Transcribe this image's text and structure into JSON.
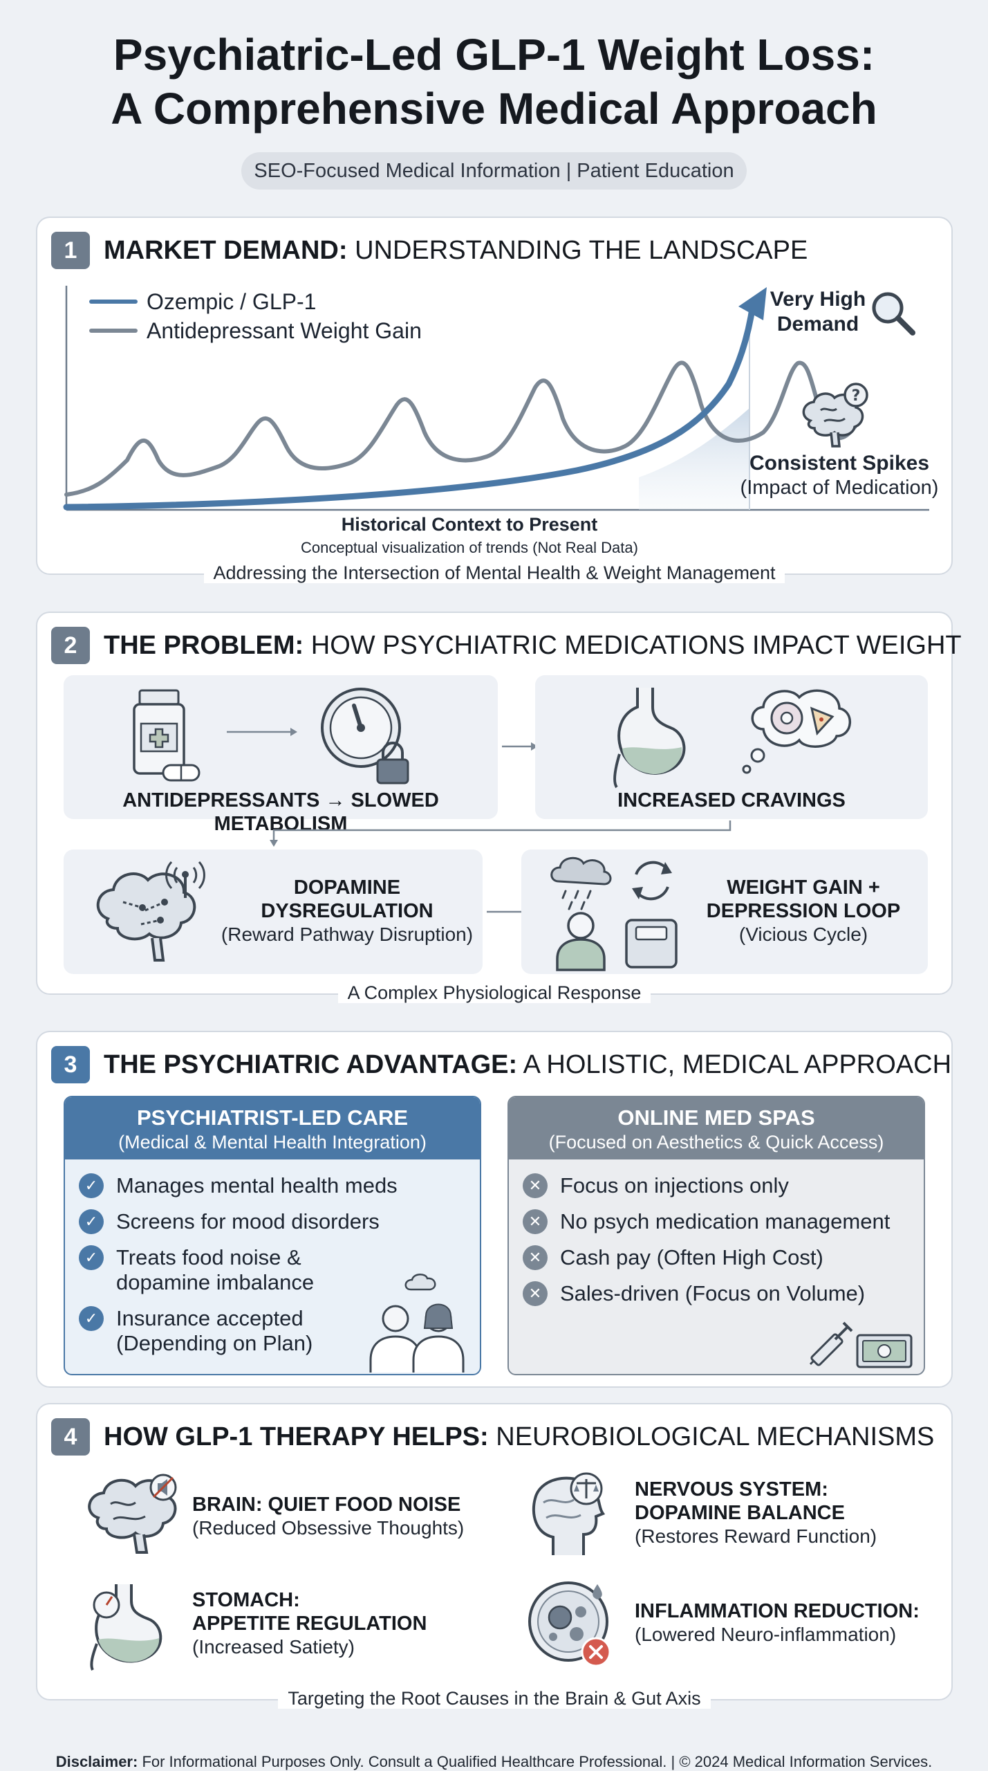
{
  "header": {
    "title_line1": "Psychiatric-Led GLP-1 Weight Loss:",
    "title_line2": "A Comprehensive Medical Approach",
    "subtitle": "SEO-Focused Medical Information | Patient Education"
  },
  "section1": {
    "number": "1",
    "title_bold": "MARKET DEMAND:",
    "title_rest": " UNDERSTANDING THE LANDSCAPE",
    "legend": [
      "Ozempic / GLP-1",
      "Antidepressant Weight Gain"
    ],
    "annotation_high_line1": "Very High",
    "annotation_high_line2": "Demand",
    "annotation_spikes_bold": "Consistent Spikes",
    "annotation_spikes_note": "(Impact of Medication)",
    "xlabel": "Historical Context to Present",
    "xlabel_note": "Conceptual visualization of trends (Not Real Data)",
    "caption": "Addressing the Intersection of Mental Health & Weight Management",
    "colors": {
      "glp1": "#4a78a6",
      "antidep": "#7b8794"
    }
  },
  "section2": {
    "number": "2",
    "title_bold": "THE PROBLEM:",
    "title_rest": " HOW PSYCHIATRIC MEDICATIONS IMPACT WEIGHT",
    "box1_label": "ANTIDEPRESSANTS → SLOWED METABOLISM",
    "box2_label": "INCREASED CRAVINGS",
    "box3_label_line1": "DOPAMINE",
    "box3_label_line2": "DYSREGULATION",
    "box3_note": "(Reward Pathway Disruption)",
    "box4_label_line1": "WEIGHT GAIN +",
    "box4_label_line2": "DEPRESSION LOOP",
    "box4_note": "(Vicious Cycle)",
    "caption": "A Complex Physiological Response"
  },
  "section3": {
    "number": "3",
    "title_bold": "THE PSYCHIATRIC ADVANTAGE:",
    "title_rest": " A HOLISTIC, MEDICAL APPROACH",
    "left": {
      "head": "PSYCHIATRIST-LED CARE",
      "sub": "(Medical & Mental Health Integration)",
      "items": [
        "Manages mental health meds",
        "Screens for mood disorders",
        "Treats food noise & dopamine imbalance",
        "Insurance accepted (Depending on Plan)"
      ]
    },
    "right": {
      "head": "ONLINE MED SPAS",
      "sub": "(Focused on Aesthetics & Quick Access)",
      "items": [
        "Focus on injections only",
        "No psych medication management",
        "Cash pay (Often High Cost)",
        "Sales-driven (Focus on Volume)"
      ]
    }
  },
  "section4": {
    "number": "4",
    "title_bold": "HOW GLP-1 THERAPY HELPS:",
    "title_rest": " NEUROBIOLOGICAL MECHANISMS",
    "m1_t1": "BRAIN: QUIET FOOD NOISE",
    "m1_t2": "(Reduced Obsessive Thoughts)",
    "m2_t1": "NERVOUS SYSTEM:",
    "m2_t1b": "DOPAMINE BALANCE",
    "m2_t2": "(Restores Reward Function)",
    "m3_t1": "STOMACH:",
    "m3_t1b": "APPETITE REGULATION",
    "m3_t2": "(Increased Satiety)",
    "m4_t1": "INFLAMMATION REDUCTION:",
    "m4_t2": "(Lowered Neuro-inflammation)",
    "caption": "Targeting the Root Causes in the Brain & Gut Axis"
  },
  "footer": {
    "disclaimer_bold": "Disclaimer:",
    "disclaimer_text": " For Informational Purposes Only. Consult a Qualified Healthcare Professional. | © 2024 Medical Information Services."
  }
}
